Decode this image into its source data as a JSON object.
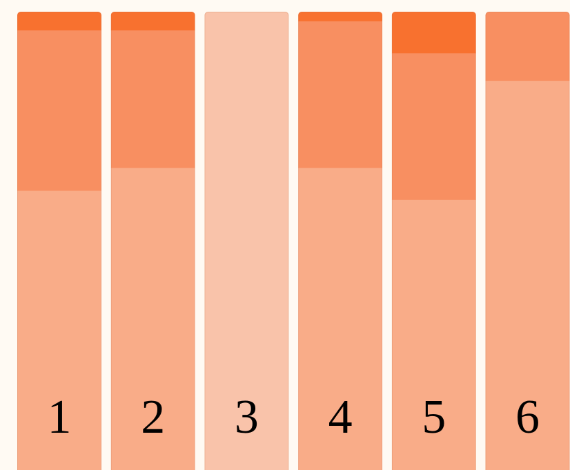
{
  "chart_data": {
    "type": "bar",
    "stacked": true,
    "orientation": "vertical",
    "categories": [
      "1",
      "2",
      "3",
      "4",
      "5",
      "6"
    ],
    "series": [
      {
        "values": [
          61,
          66,
          100,
          66,
          59,
          85
        ],
        "color": "#F9AC88"
      },
      {
        "values": [
          35,
          30,
          0,
          32,
          32,
          15
        ],
        "color": "#F88F61"
      },
      {
        "values": [
          4,
          4,
          0,
          2,
          9,
          0
        ],
        "color": "#F8712F"
      }
    ],
    "single_segment_color": "#F9C3AA",
    "ylim": [
      0,
      100
    ],
    "grid": false,
    "legend": "none",
    "title": "",
    "xlabel": "",
    "ylabel": ""
  }
}
